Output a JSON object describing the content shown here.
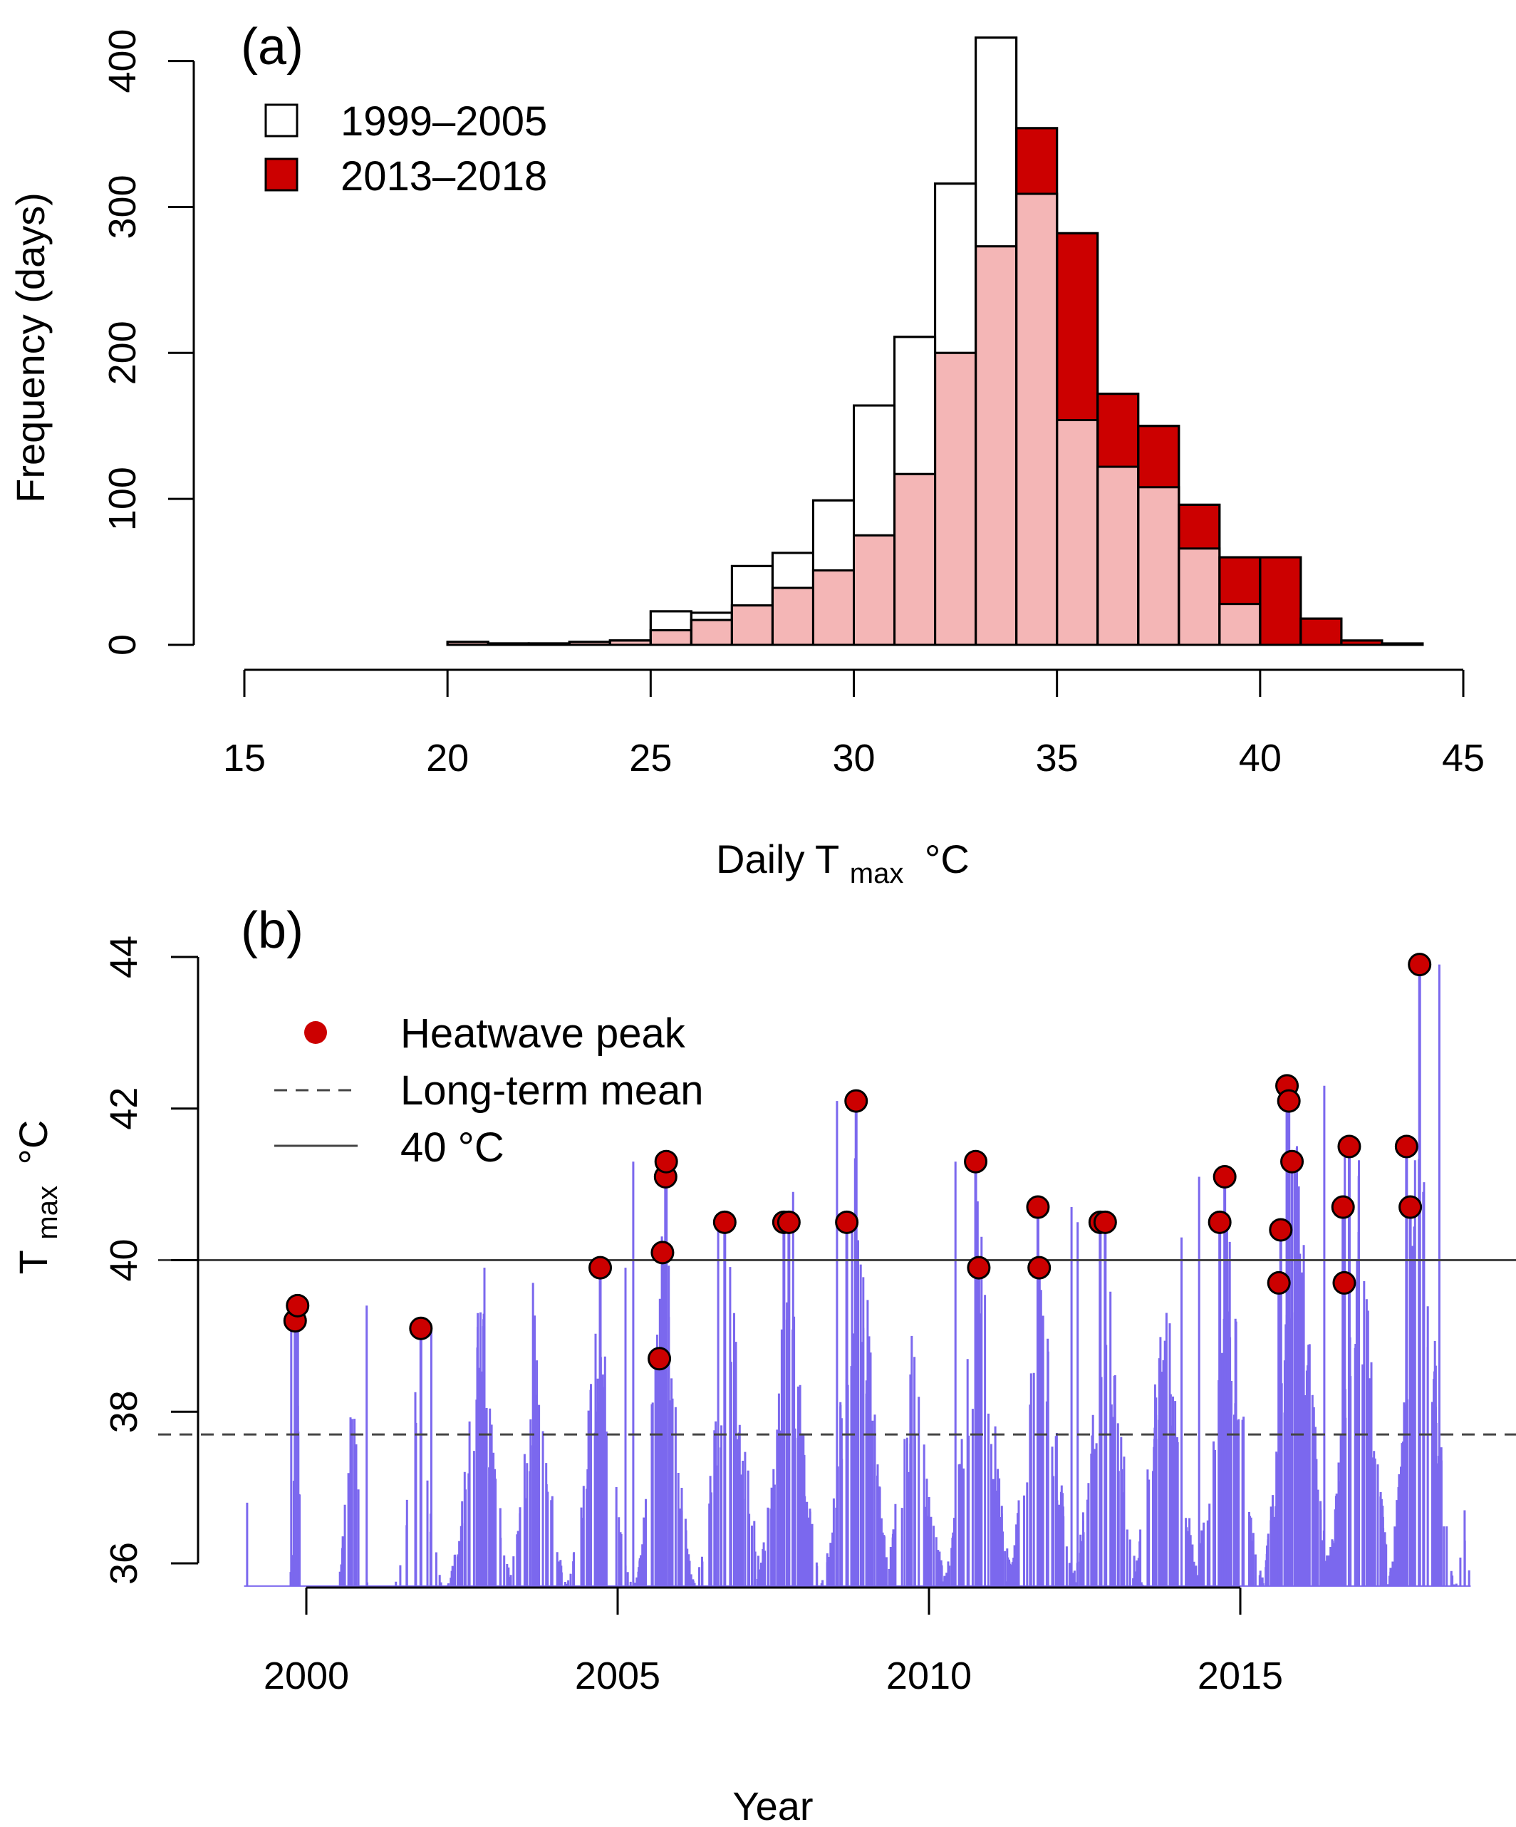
{
  "chart_data": [
    {
      "panel": "(a)",
      "type": "bar",
      "xlabel": "Daily T",
      "xlabel_sub": "max",
      "xlabel_unit": "°C",
      "ylabel": "Frequency (days)",
      "xlim": [
        15,
        45
      ],
      "ylim": [
        0,
        400
      ],
      "x_ticks": [
        15,
        20,
        25,
        30,
        35,
        40,
        45
      ],
      "y_ticks": [
        0,
        100,
        200,
        300,
        400
      ],
      "bin_edges": [
        20,
        21,
        22,
        23,
        24,
        25,
        26,
        27,
        28,
        29,
        30,
        31,
        32,
        33,
        34,
        35,
        36,
        37,
        38,
        39,
        40,
        41,
        42,
        43,
        44
      ],
      "series": [
        {
          "name": "1999–2005",
          "color": "#ffffff",
          "values": [
            2,
            1,
            1,
            2,
            3,
            23,
            22,
            54,
            63,
            99,
            164,
            211,
            316,
            416,
            309,
            154,
            122,
            108,
            66,
            28,
            0,
            0,
            0,
            0
          ]
        },
        {
          "name": "2013–2018",
          "color": "#cc0000",
          "values": [
            2,
            1,
            1,
            2,
            3,
            10,
            17,
            27,
            39,
            51,
            75,
            117,
            200,
            273,
            354,
            282,
            172,
            150,
            96,
            60,
            60,
            18,
            3,
            1
          ]
        }
      ],
      "overlap_color": "#f4b6b6",
      "legend": [
        "1999–2005",
        "2013–2018"
      ],
      "legend_position": "top-left"
    },
    {
      "panel": "(b)",
      "type": "line",
      "xlabel": "Year",
      "ylabel": "T",
      "ylabel_sub": "max",
      "ylabel_unit": "°C",
      "xlim": [
        1998.2,
        2019.0
      ],
      "ylim": [
        35.7,
        44.2
      ],
      "x_ticks": [
        2000,
        2005,
        2010,
        2015
      ],
      "y_ticks": [
        36,
        38,
        40,
        42,
        44
      ],
      "series_color": "#7b68ee",
      "baseline": 35.7,
      "long_term_mean": 37.7,
      "threshold": 40,
      "legend": [
        "Heatwave peak",
        "Long-term mean",
        "40 °C"
      ],
      "legend_position": "top-left",
      "seasons": [
        {
          "center": 1999.05,
          "peak": 36.8,
          "width": 0.02,
          "count": 1
        },
        {
          "center": 1999.85,
          "peak": 39.5,
          "width": 0.12,
          "count": 10
        },
        {
          "center": 2000.75,
          "peak": 39.4,
          "width": 0.25,
          "count": 14
        },
        {
          "center": 2001.8,
          "peak": 39.1,
          "width": 0.4,
          "count": 15
        },
        {
          "center": 2002.8,
          "peak": 39.9,
          "width": 0.55,
          "count": 50
        },
        {
          "center": 2003.7,
          "peak": 39.7,
          "width": 0.5,
          "count": 36
        },
        {
          "center": 2004.7,
          "peak": 39.9,
          "width": 0.55,
          "count": 36
        },
        {
          "center": 2005.75,
          "peak": 41.3,
          "width": 0.5,
          "count": 56
        },
        {
          "center": 2006.8,
          "peak": 40.5,
          "width": 0.6,
          "count": 40
        },
        {
          "center": 2007.75,
          "peak": 40.9,
          "width": 0.55,
          "count": 56
        },
        {
          "center": 2008.85,
          "peak": 42.1,
          "width": 0.6,
          "count": 60
        },
        {
          "center": 2009.75,
          "peak": 39.0,
          "width": 0.6,
          "count": 44
        },
        {
          "center": 2010.8,
          "peak": 41.3,
          "width": 0.6,
          "count": 56
        },
        {
          "center": 2011.8,
          "peak": 40.7,
          "width": 0.6,
          "count": 58
        },
        {
          "center": 2012.85,
          "peak": 40.5,
          "width": 0.6,
          "count": 58
        },
        {
          "center": 2013.8,
          "peak": 40.3,
          "width": 0.6,
          "count": 56
        },
        {
          "center": 2014.8,
          "peak": 41.1,
          "width": 0.6,
          "count": 58
        },
        {
          "center": 2015.9,
          "peak": 42.3,
          "width": 0.6,
          "count": 76
        },
        {
          "center": 2016.9,
          "peak": 41.5,
          "width": 0.6,
          "count": 70
        },
        {
          "center": 2017.9,
          "peak": 43.9,
          "width": 0.55,
          "count": 62
        },
        {
          "center": 2018.6,
          "peak": 36.7,
          "width": 0.15,
          "count": 5
        }
      ],
      "heatwave_peaks": [
        {
          "x": 1999.82,
          "y": 39.2
        },
        {
          "x": 1999.86,
          "y": 39.4
        },
        {
          "x": 2001.84,
          "y": 39.1
        },
        {
          "x": 2004.72,
          "y": 39.9
        },
        {
          "x": 2005.67,
          "y": 38.7
        },
        {
          "x": 2005.72,
          "y": 40.1
        },
        {
          "x": 2005.77,
          "y": 41.1
        },
        {
          "x": 2005.78,
          "y": 41.3
        },
        {
          "x": 2006.72,
          "y": 40.5
        },
        {
          "x": 2007.67,
          "y": 40.5
        },
        {
          "x": 2007.75,
          "y": 40.5
        },
        {
          "x": 2008.68,
          "y": 40.5
        },
        {
          "x": 2008.83,
          "y": 42.1
        },
        {
          "x": 2010.75,
          "y": 41.3
        },
        {
          "x": 2010.8,
          "y": 39.9
        },
        {
          "x": 2011.75,
          "y": 40.7
        },
        {
          "x": 2011.77,
          "y": 39.9
        },
        {
          "x": 2012.75,
          "y": 40.5
        },
        {
          "x": 2012.83,
          "y": 40.5
        },
        {
          "x": 2014.67,
          "y": 40.5
        },
        {
          "x": 2014.75,
          "y": 41.1
        },
        {
          "x": 2015.62,
          "y": 39.7
        },
        {
          "x": 2015.65,
          "y": 40.4
        },
        {
          "x": 2015.75,
          "y": 42.3
        },
        {
          "x": 2015.78,
          "y": 42.1
        },
        {
          "x": 2015.83,
          "y": 41.3
        },
        {
          "x": 2016.65,
          "y": 40.7
        },
        {
          "x": 2016.67,
          "y": 39.7
        },
        {
          "x": 2016.75,
          "y": 41.5
        },
        {
          "x": 2017.67,
          "y": 41.5
        },
        {
          "x": 2017.73,
          "y": 40.7
        },
        {
          "x": 2017.88,
          "y": 43.9
        }
      ],
      "peak_color": "#cc0000"
    }
  ]
}
